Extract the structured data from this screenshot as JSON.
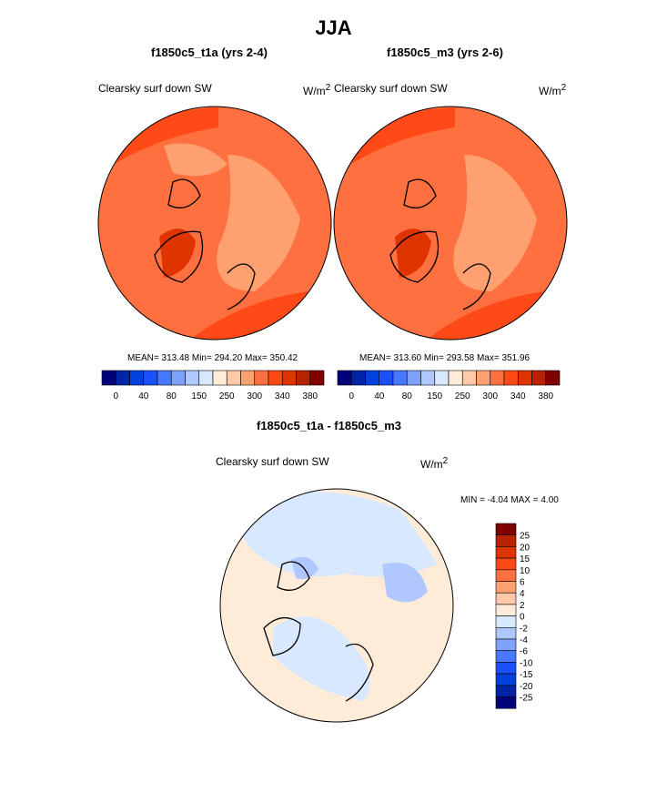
{
  "title": "JJA",
  "panels": [
    {
      "title": "f1850c5_t1a (yrs 2-4)",
      "variable": "Clearsky surf down SW",
      "units": "W/m",
      "units_sup": "2",
      "stats": "MEAN= 313.48  Min= 294.20  Max= 350.42"
    },
    {
      "title": "f1850c5_m3 (yrs 2-6)",
      "variable": "Clearsky surf down SW",
      "units": "W/m",
      "units_sup": "2",
      "stats": "MEAN= 313.60  Min= 293.58  Max= 351.96"
    },
    {
      "title": "f1850c5_t1a - f1850c5_m3",
      "variable": "Clearsky surf down SW",
      "units": "W/m",
      "units_sup": "2",
      "stats": "MIN =  -4.04 MAX =   4.00"
    }
  ],
  "chart_data": [
    {
      "type": "heatmap",
      "projection": "north-polar-stereographic",
      "title": "f1850c5_t1a (yrs 2-4)",
      "mean": 313.48,
      "min": 294.2,
      "max": 350.42,
      "colorbar_labels": [
        "0",
        "40",
        "80",
        "150",
        "250",
        "300",
        "340",
        "380"
      ]
    },
    {
      "type": "heatmap",
      "projection": "north-polar-stereographic",
      "title": "f1850c5_m3 (yrs 2-6)",
      "mean": 313.6,
      "min": 293.58,
      "max": 351.96,
      "colorbar_labels": [
        "0",
        "40",
        "80",
        "150",
        "250",
        "300",
        "340",
        "380"
      ]
    },
    {
      "type": "heatmap",
      "projection": "north-polar-stereographic",
      "title": "f1850c5_t1a - f1850c5_m3",
      "min": -4.04,
      "max": 4.0,
      "colorbar_labels": [
        "25",
        "20",
        "15",
        "10",
        "6",
        "4",
        "2",
        "0",
        "-2",
        "-4",
        "-6",
        "-10",
        "-15",
        "-20",
        "-25"
      ]
    }
  ],
  "colors": [
    "#00007a",
    "#0024a8",
    "#0040dd",
    "#1c50ff",
    "#4878ff",
    "#80a2ff",
    "#b0c8ff",
    "#d8e8ff",
    "#ffecd8",
    "#ffc8a8",
    "#ffa070",
    "#ff7040",
    "#ff4a18",
    "#e03400",
    "#b82200",
    "#800000"
  ]
}
